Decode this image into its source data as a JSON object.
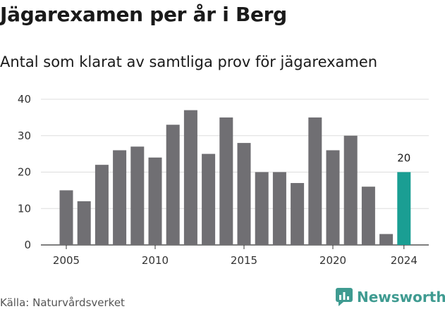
{
  "title": "Jägarexamen per år i Berg",
  "subtitle": "Antal som klarat av samtliga prov för jägarexamen",
  "source": "Källa: Naturvårdsverket",
  "brand": {
    "name": "Newsworthy",
    "color": "#3f9b91",
    "icon": "newsworthy-chart-icon"
  },
  "colors": {
    "bar": "#706f73",
    "highlight": "#1a9e93",
    "grid": "#dddddd"
  },
  "chart_data": {
    "type": "bar",
    "x": [
      2005,
      2006,
      2007,
      2008,
      2009,
      2010,
      2011,
      2012,
      2013,
      2014,
      2015,
      2016,
      2017,
      2018,
      2019,
      2020,
      2021,
      2022,
      2023,
      2024
    ],
    "values": [
      15,
      12,
      22,
      26,
      27,
      24,
      33,
      37,
      25,
      35,
      28,
      20,
      20,
      17,
      35,
      26,
      30,
      16,
      3,
      20
    ],
    "highlight": {
      "x": 2024,
      "label": "20"
    },
    "xticks": [
      "2005",
      "2010",
      "2015",
      "2020",
      "2024"
    ],
    "yticks": [
      "0",
      "10",
      "20",
      "30",
      "40"
    ],
    "ylim": [
      0,
      40
    ],
    "xlabel": "",
    "ylabel": "",
    "grid": true
  }
}
